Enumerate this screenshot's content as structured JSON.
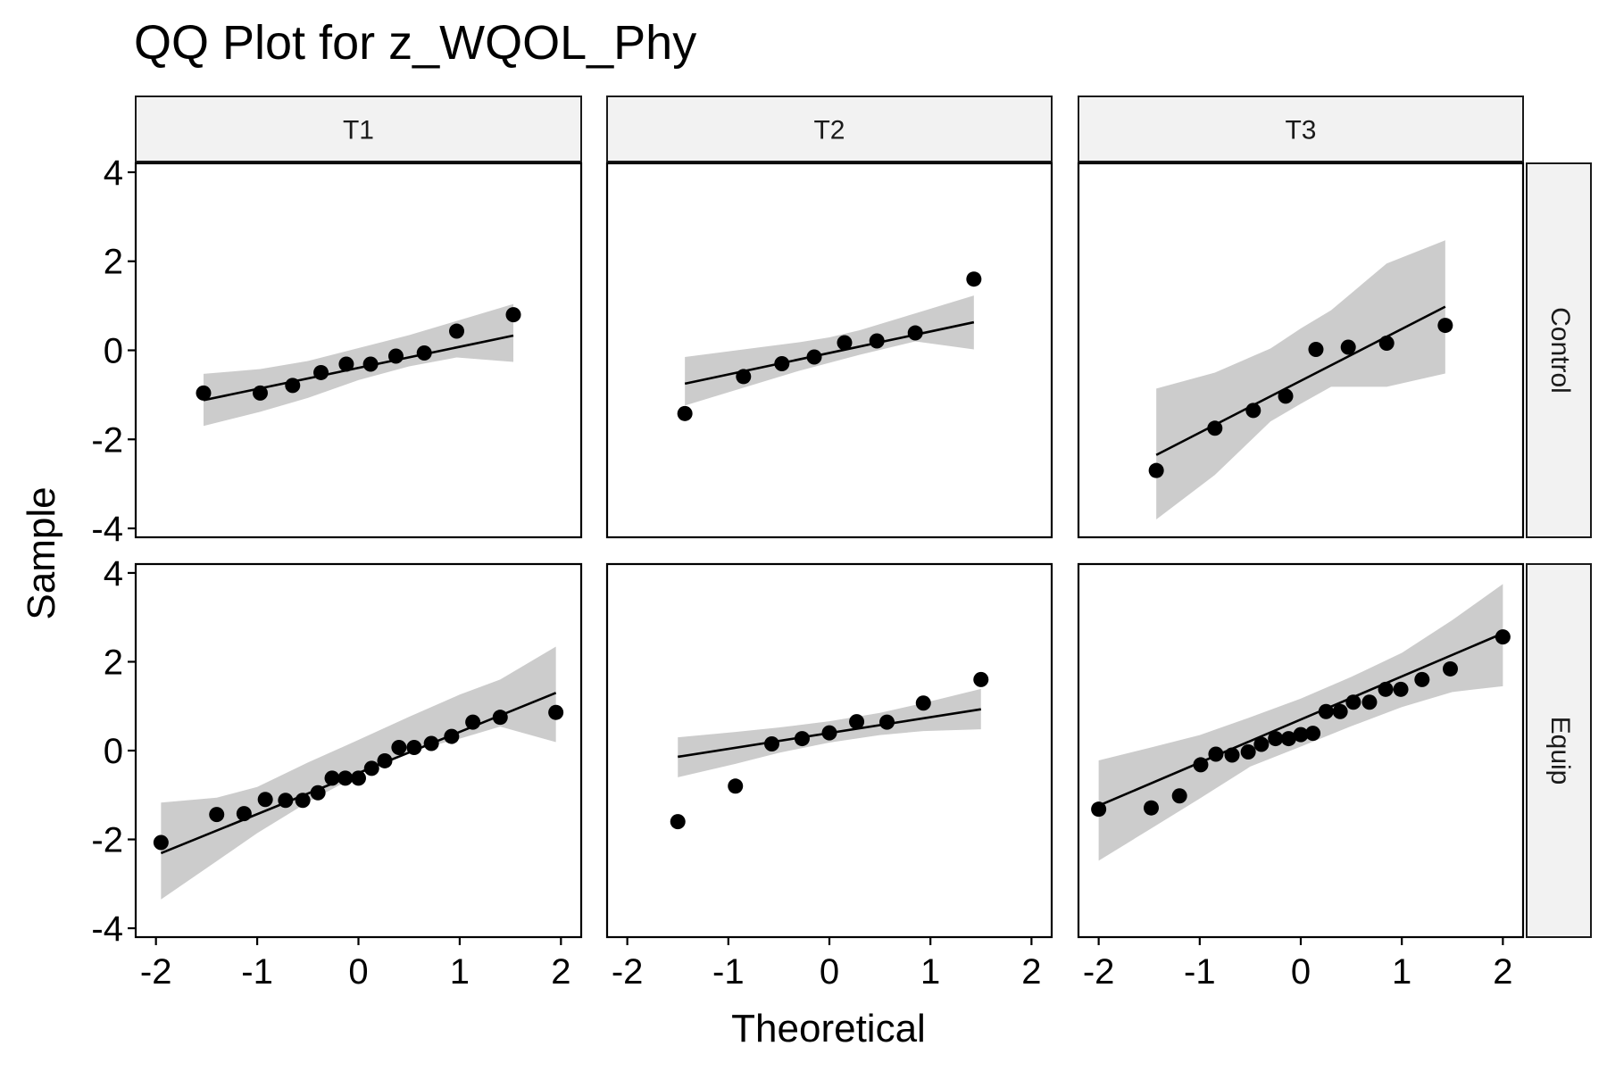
{
  "chart_data": {
    "type": "scatter",
    "title": "QQ Plot for z_WQOL_Phy",
    "xlabel": "Theoretical",
    "ylabel": "Sample",
    "xlim": [
      -2.2,
      2.2
    ],
    "ylim": [
      -4.2,
      4.2
    ],
    "x_ticks": [
      -2,
      -1,
      0,
      1,
      2
    ],
    "y_ticks": [
      -4,
      -2,
      0,
      2,
      4
    ],
    "columns": [
      "T1",
      "T2",
      "T3"
    ],
    "rows": [
      "Control",
      "Equip"
    ],
    "grid": false,
    "colors": {
      "point": "#000000",
      "line": "#000000",
      "band": "#cccccc",
      "strip_bg": "#f2f2f2"
    },
    "panels": [
      {
        "col": "T1",
        "row": "Control",
        "points": [
          [
            -1.53,
            -0.96
          ],
          [
            -0.97,
            -0.96
          ],
          [
            -0.65,
            -0.79
          ],
          [
            -0.37,
            -0.5
          ],
          [
            -0.12,
            -0.31
          ],
          [
            0.12,
            -0.31
          ],
          [
            0.37,
            -0.13
          ],
          [
            0.65,
            -0.06
          ],
          [
            0.97,
            0.43
          ],
          [
            1.53,
            0.8
          ]
        ],
        "line": [
          [
            -1.53,
            -1.12
          ],
          [
            1.53,
            0.33
          ]
        ],
        "band": [
          [
            -1.53,
            -0.53,
            -1.7
          ],
          [
            -0.97,
            -0.42,
            -1.38
          ],
          [
            -0.5,
            -0.24,
            -1.07
          ],
          [
            0,
            0.05,
            -0.67
          ],
          [
            0.5,
            0.34,
            -0.36
          ],
          [
            0.97,
            0.66,
            -0.16
          ],
          [
            1.53,
            1.04,
            -0.26
          ]
        ]
      },
      {
        "col": "T2",
        "row": "Control",
        "points": [
          [
            -1.43,
            -1.42
          ],
          [
            -0.85,
            -0.59
          ],
          [
            -0.47,
            -0.3
          ],
          [
            -0.15,
            -0.15
          ],
          [
            0.15,
            0.17
          ],
          [
            0.47,
            0.21
          ],
          [
            0.85,
            0.39
          ],
          [
            1.43,
            1.6
          ]
        ],
        "line": [
          [
            -1.43,
            -0.75
          ],
          [
            1.43,
            0.63
          ]
        ],
        "band": [
          [
            -1.43,
            -0.15,
            -1.24
          ],
          [
            -0.85,
            0.02,
            -0.84
          ],
          [
            -0.3,
            0.18,
            -0.46
          ],
          [
            0,
            0.29,
            -0.28
          ],
          [
            0.3,
            0.45,
            -0.1
          ],
          [
            0.85,
            0.83,
            0.2
          ],
          [
            1.43,
            1.23,
            0.02
          ]
        ]
      },
      {
        "col": "T3",
        "row": "Control",
        "points": [
          [
            -1.43,
            -2.7
          ],
          [
            -0.85,
            -1.75
          ],
          [
            -0.47,
            -1.35
          ],
          [
            -0.15,
            -1.03
          ],
          [
            0.15,
            0.02
          ],
          [
            0.47,
            0.07
          ],
          [
            0.85,
            0.16
          ],
          [
            1.43,
            0.56
          ]
        ],
        "line": [
          [
            -1.43,
            -2.35
          ],
          [
            1.43,
            0.98
          ]
        ],
        "band": [
          [
            -1.43,
            -0.86,
            -3.8
          ],
          [
            -0.85,
            -0.5,
            -2.8
          ],
          [
            -0.3,
            0.04,
            -1.6
          ],
          [
            0,
            0.49,
            -1.2
          ],
          [
            0.3,
            0.9,
            -0.82
          ],
          [
            0.85,
            1.95,
            -0.82
          ],
          [
            1.43,
            2.47,
            -0.52
          ]
        ]
      },
      {
        "col": "T1",
        "row": "Equip",
        "points": [
          [
            -1.95,
            -2.07
          ],
          [
            -1.4,
            -1.44
          ],
          [
            -1.13,
            -1.42
          ],
          [
            -0.92,
            -1.1
          ],
          [
            -0.72,
            -1.12
          ],
          [
            -0.55,
            -1.12
          ],
          [
            -0.4,
            -0.95
          ],
          [
            -0.26,
            -0.62
          ],
          [
            -0.13,
            -0.62
          ],
          [
            0,
            -0.62
          ],
          [
            0.13,
            -0.4
          ],
          [
            0.26,
            -0.23
          ],
          [
            0.4,
            0.07
          ],
          [
            0.55,
            0.07
          ],
          [
            0.72,
            0.16
          ],
          [
            0.92,
            0.32
          ],
          [
            1.13,
            0.64
          ],
          [
            1.4,
            0.75
          ],
          [
            1.95,
            0.86
          ]
        ],
        "line": [
          [
            -1.95,
            -2.31
          ],
          [
            1.95,
            1.3
          ]
        ],
        "band": [
          [
            -1.95,
            -1.17,
            -3.35
          ],
          [
            -1.4,
            -1.06,
            -2.49
          ],
          [
            -1,
            -0.82,
            -1.86
          ],
          [
            -0.5,
            -0.27,
            -1.16
          ],
          [
            0,
            0.24,
            -0.55
          ],
          [
            0.5,
            0.76,
            -0.02
          ],
          [
            1,
            1.26,
            0.27
          ],
          [
            1.4,
            1.6,
            0.54
          ],
          [
            1.95,
            2.34,
            0.19
          ]
        ]
      },
      {
        "col": "T2",
        "row": "Equip",
        "points": [
          [
            -1.5,
            -1.6
          ],
          [
            -0.93,
            -0.8
          ],
          [
            -0.57,
            0.15
          ],
          [
            -0.27,
            0.27
          ],
          [
            0,
            0.4
          ],
          [
            0.27,
            0.65
          ],
          [
            0.57,
            0.64
          ],
          [
            0.93,
            1.07
          ],
          [
            1.5,
            1.6
          ]
        ],
        "line": [
          [
            -1.5,
            -0.14
          ],
          [
            1.5,
            0.93
          ]
        ],
        "band": [
          [
            -1.5,
            0.3,
            -0.6
          ],
          [
            -0.93,
            0.42,
            -0.3
          ],
          [
            -0.5,
            0.52,
            -0.05
          ],
          [
            0,
            0.66,
            0.18
          ],
          [
            0.5,
            0.85,
            0.35
          ],
          [
            0.93,
            1.07,
            0.44
          ],
          [
            1.5,
            1.39,
            0.48
          ]
        ]
      },
      {
        "col": "T3",
        "row": "Equip",
        "points": [
          [
            -2.0,
            -1.32
          ],
          [
            -1.48,
            -1.29
          ],
          [
            -1.2,
            -1.02
          ],
          [
            -0.99,
            -0.32
          ],
          [
            -0.84,
            -0.08
          ],
          [
            -0.68,
            -0.1
          ],
          [
            -0.52,
            -0.03
          ],
          [
            -0.39,
            0.14
          ],
          [
            -0.25,
            0.27
          ],
          [
            -0.12,
            0.27
          ],
          [
            0,
            0.36
          ],
          [
            0.12,
            0.39
          ],
          [
            0.25,
            0.88
          ],
          [
            0.39,
            0.88
          ],
          [
            0.52,
            1.09
          ],
          [
            0.68,
            1.09
          ],
          [
            0.84,
            1.38
          ],
          [
            0.99,
            1.38
          ],
          [
            1.2,
            1.6
          ],
          [
            1.48,
            1.84
          ],
          [
            2.0,
            2.56
          ]
        ],
        "line": [
          [
            -2.0,
            -1.24
          ],
          [
            2.0,
            2.64
          ]
        ],
        "band": [
          [
            -2.0,
            -0.22,
            -2.48
          ],
          [
            -1.5,
            0.06,
            -1.78
          ],
          [
            -1,
            0.35,
            -1.08
          ],
          [
            -0.5,
            0.75,
            -0.36
          ],
          [
            0,
            1.17,
            0.09
          ],
          [
            0.5,
            1.66,
            0.55
          ],
          [
            1,
            2.2,
            0.98
          ],
          [
            1.5,
            2.94,
            1.32
          ],
          [
            2.0,
            3.75,
            1.45
          ]
        ]
      }
    ]
  }
}
